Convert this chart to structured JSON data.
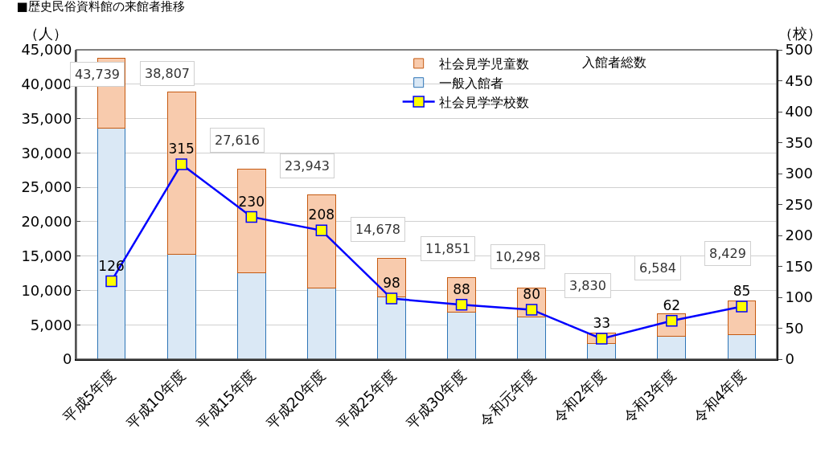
{
  "chart_data": {
    "type": "bar",
    "title": "■歴史民俗資料館の来館者推移",
    "ylabel": "（人）",
    "y2label": "（校）",
    "categories": [
      "平成5年度",
      "平成10年度",
      "平成15年度",
      "平成20年度",
      "平成25年度",
      "平成30年度",
      "令和元年度",
      "令和2年度",
      "令和3年度",
      "令和4年度"
    ],
    "series": [
      {
        "name": "一般入館者",
        "color": "#dae8f5",
        "values": [
          33600,
          15300,
          12600,
          10400,
          9100,
          6800,
          6100,
          2300,
          3300,
          3600
        ]
      },
      {
        "name": "社会見学児童数",
        "color": "#f8cbad",
        "values": [
          10139,
          23507,
          15016,
          13543,
          5578,
          5051,
          4198,
          1530,
          3284,
          4829
        ]
      },
      {
        "name": "社会見学学校数",
        "type": "line",
        "axis": "y2",
        "color": "#0000ff",
        "marker": "square",
        "values": [
          126,
          315,
          230,
          208,
          98,
          88,
          80,
          33,
          62,
          85
        ],
        "value_labels": [
          "126",
          "315",
          "230",
          "208",
          "98",
          "88",
          "80",
          "33",
          "62",
          "85"
        ]
      }
    ],
    "stacked": true,
    "totals": [
      "43,739",
      "38,807",
      "27,616",
      "23,943",
      "14,678",
      "11,851",
      "10,298",
      "3,830",
      "6,584",
      "8,429"
    ],
    "annotations": [
      "入館者総数"
    ],
    "ylim": [
      0,
      45000
    ],
    "yticks": [
      {
        "value": 0,
        "label": "0"
      },
      {
        "value": 5000,
        "label": "5,000"
      },
      {
        "value": 10000,
        "label": "10,000"
      },
      {
        "value": 15000,
        "label": "15,000"
      },
      {
        "value": 20000,
        "label": "20,000"
      },
      {
        "value": 25000,
        "label": "25,000"
      },
      {
        "value": 30000,
        "label": "30,000"
      },
      {
        "value": 35000,
        "label": "35,000"
      },
      {
        "value": 40000,
        "label": "40,000"
      },
      {
        "value": 45000,
        "label": "45,000"
      }
    ],
    "y2lim": [
      0,
      500
    ],
    "y2ticks": [
      0,
      50,
      100,
      150,
      200,
      250,
      300,
      350,
      400,
      450,
      500
    ],
    "grid": "y",
    "legend": "top right"
  }
}
